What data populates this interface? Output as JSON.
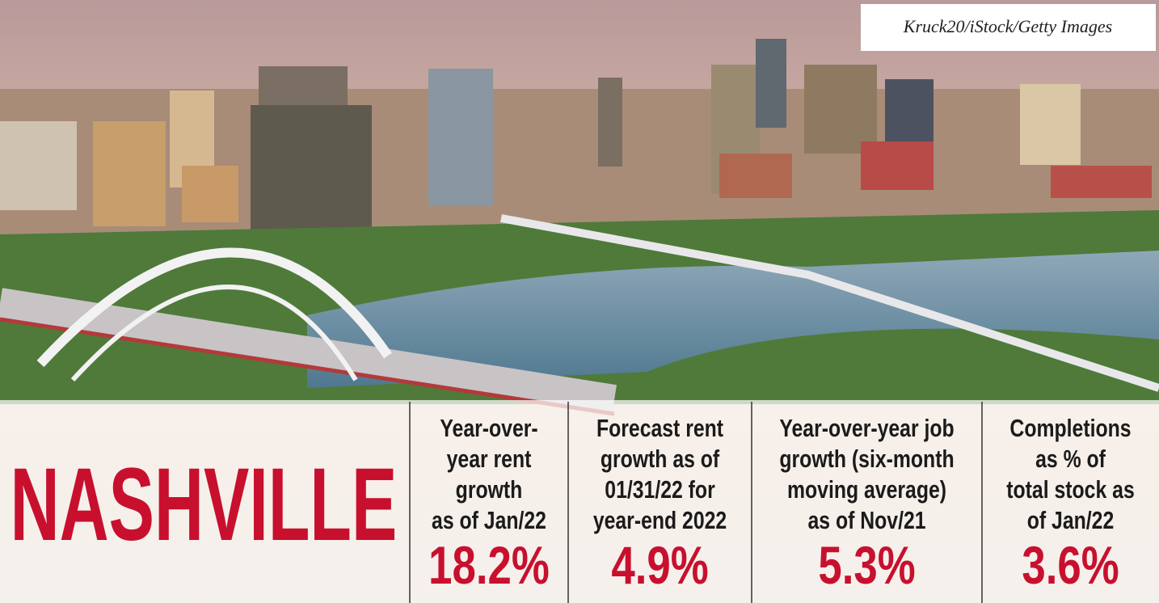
{
  "credit": "Kruck20/iStock/Getty Images",
  "title": "NASHVILLE",
  "stats": [
    {
      "label": [
        "Year-over-",
        "year rent",
        "growth",
        "as of Jan/22"
      ],
      "value": "18.2%"
    },
    {
      "label": [
        "Forecast rent",
        "growth as of",
        "01/31/22 for",
        "year-end 2022"
      ],
      "value": "4.9%"
    },
    {
      "label": [
        "Year-over-year job",
        "growth (six-month",
        "moving average)",
        "as of Nov/21"
      ],
      "value": "5.3%"
    },
    {
      "label": [
        "Completions",
        "as % of",
        "total stock as",
        "of Jan/22"
      ],
      "value": "3.6%"
    }
  ]
}
